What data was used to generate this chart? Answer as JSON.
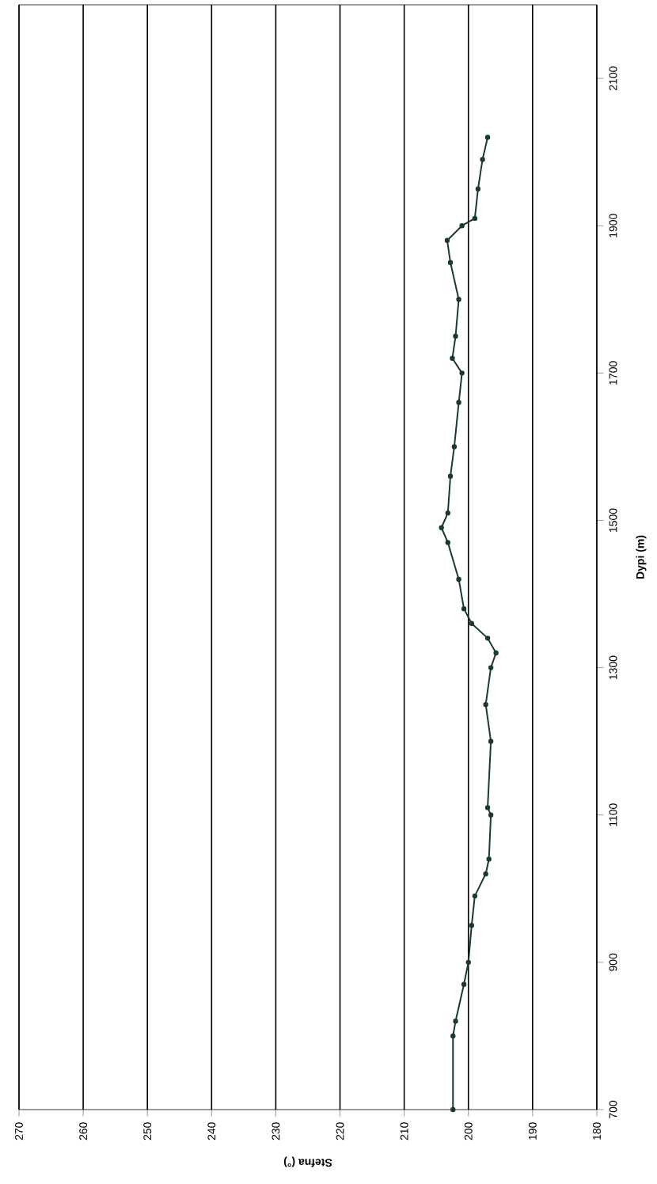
{
  "chart_data": {
    "type": "line",
    "xlabel": "Stefna (°)",
    "ylabel": "Dypi (m)",
    "x": [
      202.4,
      202.4,
      202,
      200.7,
      200,
      199.5,
      199,
      197.3,
      196.8,
      196.5,
      197,
      196.5,
      197.3,
      196.5,
      195.7,
      197,
      199.5,
      200.7,
      201.5,
      203.2,
      204.2,
      203.2,
      202.8,
      202.2,
      201.5,
      201,
      202.5,
      202,
      201.5,
      202.8,
      203.3,
      201,
      199,
      198.5,
      197.8,
      197
    ],
    "values": [
      700,
      800,
      820,
      870,
      900,
      950,
      990,
      1020,
      1040,
      1100,
      1110,
      1200,
      1250,
      1300,
      1320,
      1340,
      1360,
      1380,
      1420,
      1470,
      1490,
      1510,
      1560,
      1600,
      1660,
      1700,
      1720,
      1750,
      1800,
      1850,
      1880,
      1900,
      1910,
      1950,
      1990,
      2020
    ],
    "color": "#1a3a30",
    "marker": "circle",
    "xlim": [
      270,
      180
    ],
    "xticks": [
      270,
      260,
      250,
      240,
      230,
      220,
      210,
      200,
      190,
      180
    ],
    "ylim": [
      700,
      2200
    ],
    "yticks": [
      700,
      900,
      1100,
      1300,
      1500,
      1700,
      1900,
      2100
    ],
    "grid": "x"
  }
}
